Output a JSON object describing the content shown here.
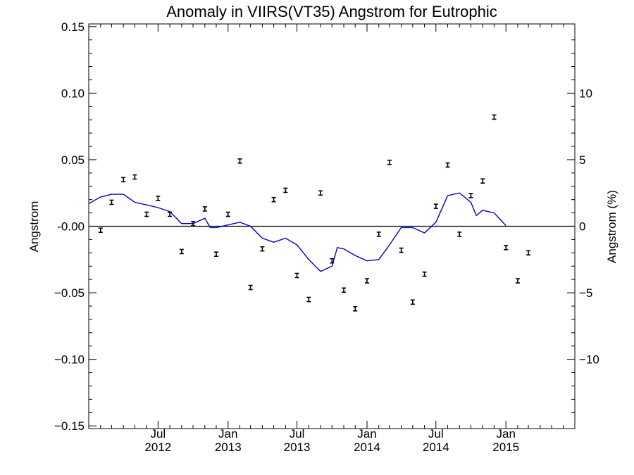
{
  "chart_data": {
    "type": "scatter",
    "title": "Anomaly in VIIRS(VT35) Angstrom for Eutrophic",
    "ylabel": "Angstrom",
    "ylabel_right": "Angstrom (%)",
    "ylim": [
      -0.152,
      0.152
    ],
    "y_ticks": [
      {
        "value": 0.15,
        "label": "0.15"
      },
      {
        "value": 0.1,
        "label": "0.10"
      },
      {
        "value": 0.05,
        "label": "0.05"
      },
      {
        "value": 0.0,
        "label": "-0.00"
      },
      {
        "value": -0.05,
        "label": "−0.05"
      },
      {
        "value": -0.1,
        "label": "−0.10"
      },
      {
        "value": -0.15,
        "label": "−0.15"
      }
    ],
    "y_right_ticks": [
      {
        "value": 10,
        "label": "10"
      },
      {
        "value": 5,
        "label": "5"
      },
      {
        "value": 0,
        "label": "0"
      },
      {
        "value": -5,
        "label": "−5"
      },
      {
        "value": -10,
        "label": "−10"
      }
    ],
    "x_start": "2012-01-01",
    "x_end": "2015-07-01",
    "x_ticks": [
      {
        "date": "2012-07-01",
        "month": "Jul",
        "year": "2012"
      },
      {
        "date": "2013-01-01",
        "month": "Jan",
        "year": "2013"
      },
      {
        "date": "2013-07-01",
        "month": "Jul",
        "year": "2013"
      },
      {
        "date": "2014-01-01",
        "month": "Jan",
        "year": "2014"
      },
      {
        "date": "2014-07-01",
        "month": "Jul",
        "year": "2014"
      },
      {
        "date": "2015-01-01",
        "month": "Jan",
        "year": "2015"
      }
    ],
    "series": [
      {
        "type": "scatter-errorbar",
        "points": [
          {
            "x": "2012-02-01",
            "y": -0.003
          },
          {
            "x": "2012-03-01",
            "y": 0.018
          },
          {
            "x": "2012-04-01",
            "y": 0.035
          },
          {
            "x": "2012-05-01",
            "y": 0.037
          },
          {
            "x": "2012-06-01",
            "y": 0.009
          },
          {
            "x": "2012-07-01",
            "y": 0.021
          },
          {
            "x": "2012-08-01",
            "y": 0.009
          },
          {
            "x": "2012-09-01",
            "y": -0.019
          },
          {
            "x": "2012-10-01",
            "y": 0.002
          },
          {
            "x": "2012-11-01",
            "y": 0.013
          },
          {
            "x": "2012-12-01",
            "y": -0.021
          },
          {
            "x": "2013-01-01",
            "y": 0.009
          },
          {
            "x": "2013-02-01",
            "y": 0.049
          },
          {
            "x": "2013-03-01",
            "y": -0.046
          },
          {
            "x": "2013-04-01",
            "y": -0.017
          },
          {
            "x": "2013-05-01",
            "y": 0.02
          },
          {
            "x": "2013-06-01",
            "y": 0.027
          },
          {
            "x": "2013-07-01",
            "y": -0.037
          },
          {
            "x": "2013-08-01",
            "y": -0.055
          },
          {
            "x": "2013-09-01",
            "y": 0.025
          },
          {
            "x": "2013-10-01",
            "y": -0.026
          },
          {
            "x": "2013-11-01",
            "y": -0.048
          },
          {
            "x": "2013-12-01",
            "y": -0.062
          },
          {
            "x": "2014-01-01",
            "y": -0.041
          },
          {
            "x": "2014-02-01",
            "y": -0.006
          },
          {
            "x": "2014-03-01",
            "y": 0.048
          },
          {
            "x": "2014-04-01",
            "y": -0.018
          },
          {
            "x": "2014-05-01",
            "y": -0.057
          },
          {
            "x": "2014-06-01",
            "y": -0.036
          },
          {
            "x": "2014-07-01",
            "y": 0.015
          },
          {
            "x": "2014-08-01",
            "y": 0.046
          },
          {
            "x": "2014-09-01",
            "y": -0.006
          },
          {
            "x": "2014-10-01",
            "y": 0.023
          },
          {
            "x": "2014-11-01",
            "y": 0.034
          },
          {
            "x": "2014-12-01",
            "y": 0.082
          },
          {
            "x": "2015-01-01",
            "y": -0.016
          },
          {
            "x": "2015-02-01",
            "y": -0.041
          },
          {
            "x": "2015-03-01",
            "y": -0.02
          }
        ]
      },
      {
        "type": "line",
        "color": "#0000cc",
        "points": [
          {
            "x": "2012-01-01",
            "y": 0.017
          },
          {
            "x": "2012-02-01",
            "y": 0.022
          },
          {
            "x": "2012-03-01",
            "y": 0.024
          },
          {
            "x": "2012-04-01",
            "y": 0.024
          },
          {
            "x": "2012-05-01",
            "y": 0.018
          },
          {
            "x": "2012-06-01",
            "y": 0.016
          },
          {
            "x": "2012-07-01",
            "y": 0.014
          },
          {
            "x": "2012-08-01",
            "y": 0.011
          },
          {
            "x": "2012-09-01",
            "y": 0.002
          },
          {
            "x": "2012-10-01",
            "y": 0.002
          },
          {
            "x": "2012-11-01",
            "y": 0.006
          },
          {
            "x": "2012-11-15",
            "y": -0.001
          },
          {
            "x": "2012-12-01",
            "y": -0.001
          },
          {
            "x": "2013-01-01",
            "y": 0.001
          },
          {
            "x": "2013-02-01",
            "y": 0.003
          },
          {
            "x": "2013-03-01",
            "y": 0.0
          },
          {
            "x": "2013-04-01",
            "y": -0.009
          },
          {
            "x": "2013-05-01",
            "y": -0.012
          },
          {
            "x": "2013-06-01",
            "y": -0.009
          },
          {
            "x": "2013-07-01",
            "y": -0.014
          },
          {
            "x": "2013-08-01",
            "y": -0.025
          },
          {
            "x": "2013-09-01",
            "y": -0.034
          },
          {
            "x": "2013-10-01",
            "y": -0.03
          },
          {
            "x": "2013-10-15",
            "y": -0.016
          },
          {
            "x": "2013-11-01",
            "y": -0.017
          },
          {
            "x": "2013-12-01",
            "y": -0.022
          },
          {
            "x": "2014-01-01",
            "y": -0.026
          },
          {
            "x": "2014-02-01",
            "y": -0.025
          },
          {
            "x": "2014-03-01",
            "y": -0.014
          },
          {
            "x": "2014-04-01",
            "y": -0.001
          },
          {
            "x": "2014-05-01",
            "y": -0.001
          },
          {
            "x": "2014-06-01",
            "y": -0.005
          },
          {
            "x": "2014-07-01",
            "y": 0.003
          },
          {
            "x": "2014-08-01",
            "y": 0.023
          },
          {
            "x": "2014-09-01",
            "y": 0.025
          },
          {
            "x": "2014-10-01",
            "y": 0.018
          },
          {
            "x": "2014-10-15",
            "y": 0.008
          },
          {
            "x": "2014-11-01",
            "y": 0.012
          },
          {
            "x": "2014-12-01",
            "y": 0.01
          },
          {
            "x": "2015-01-01",
            "y": 0.0005
          }
        ]
      }
    ],
    "grid": false,
    "zero_line": true
  }
}
